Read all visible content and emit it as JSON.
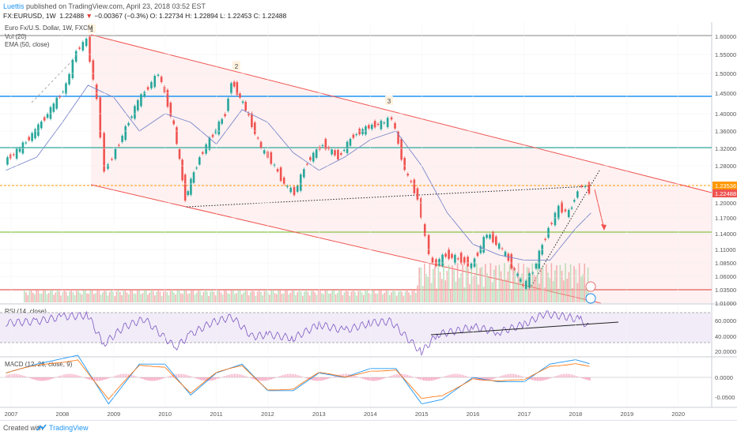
{
  "header": {
    "author": "Luettis",
    "published": "published on TradingView.com, April 23, 2018 03:52 EST",
    "symbol": "FX:EURUSD, 1W",
    "last": "1.22488",
    "change_arrow": "▼",
    "change": "−0.00367 (−0.3%)",
    "open": "O: 1.22734",
    "high": "H: 1.22894",
    "low": "L: 1.22453",
    "close": "C: 1.22488"
  },
  "legend": {
    "title": "Euro Fx/U.S. Dollar, 1W, FXCM",
    "vol": "Vol (20)",
    "ema": "EMA (50, close)",
    "rsi": "RSI (14, close)",
    "macd": "MACD (12, 26, close, 9)"
  },
  "footer": {
    "created": "Created with",
    "brand": "TradingView"
  },
  "colors": {
    "up": "#26a69a",
    "down": "#ef5350",
    "channel": "#ef5350",
    "rsi": "#7e57c2",
    "macd": "#2196f3",
    "signal": "#ff6d00"
  },
  "chart_data": [
    {
      "type": "line",
      "title": "Euro Fx/U.S. Dollar, 1W, FXCM",
      "x_ticks": [
        "2007",
        "2008",
        "2009",
        "2010",
        "2011",
        "2012",
        "2013",
        "2014",
        "2015",
        "2016",
        "2017",
        "2018",
        "2019",
        "2020"
      ],
      "y_ticks": [
        "1.60000",
        "1.55000",
        "1.50000",
        "1.45000",
        "1.40000",
        "1.36000",
        "1.32000",
        "1.28000",
        "1.24000",
        "1.20000",
        "1.17000",
        "1.14000",
        "1.11000",
        "1.08500",
        "1.06000",
        "1.03500",
        "1.01000"
      ],
      "y_range": [
        1.01,
        1.61
      ],
      "price_labels": [
        "1.23536",
        "1.22488"
      ],
      "wave_labels": [
        "1",
        "2",
        "3"
      ],
      "series": [
        {
          "name": "Price",
          "x": [
            2006.9,
            2007.2,
            2007.5,
            2007.8,
            2008.1,
            2008.3,
            2008.5,
            2008.7,
            2008.85,
            2009.0,
            2009.2,
            2009.5,
            2009.9,
            2010.2,
            2010.42,
            2010.7,
            2010.9,
            2011.2,
            2011.32,
            2011.6,
            2011.9,
            2012.1,
            2012.35,
            2012.55,
            2012.8,
            2013.1,
            2013.4,
            2013.7,
            2014.0,
            2014.3,
            2014.45,
            2014.7,
            2014.95,
            2015.1,
            2015.25,
            2015.5,
            2015.8,
            2016.0,
            2016.3,
            2016.6,
            2016.9,
            2017.0,
            2017.2,
            2017.5,
            2017.7,
            2017.9,
            2018.0,
            2018.15,
            2018.3
          ],
          "y": [
            1.29,
            1.32,
            1.36,
            1.41,
            1.47,
            1.56,
            1.59,
            1.43,
            1.27,
            1.3,
            1.35,
            1.43,
            1.5,
            1.37,
            1.21,
            1.3,
            1.34,
            1.4,
            1.48,
            1.41,
            1.32,
            1.29,
            1.24,
            1.22,
            1.29,
            1.33,
            1.3,
            1.35,
            1.37,
            1.38,
            1.39,
            1.27,
            1.21,
            1.13,
            1.08,
            1.1,
            1.09,
            1.08,
            1.14,
            1.11,
            1.06,
            1.04,
            1.07,
            1.15,
            1.19,
            1.18,
            1.21,
            1.24,
            1.225
          ]
        },
        {
          "name": "EMA (50, close)",
          "x": [
            2006.9,
            2007.5,
            2008.0,
            2008.5,
            2009.0,
            2009.5,
            2010.0,
            2010.5,
            2011.0,
            2011.5,
            2012.0,
            2012.5,
            2013.0,
            2013.5,
            2014.0,
            2014.5,
            2015.0,
            2015.5,
            2016.0,
            2016.5,
            2017.0,
            2017.5,
            2018.0,
            2018.3
          ],
          "y": [
            1.27,
            1.3,
            1.38,
            1.47,
            1.44,
            1.36,
            1.4,
            1.38,
            1.33,
            1.41,
            1.38,
            1.31,
            1.27,
            1.3,
            1.34,
            1.36,
            1.28,
            1.18,
            1.12,
            1.1,
            1.09,
            1.09,
            1.15,
            1.18
          ]
        }
      ]
    },
    {
      "type": "bar",
      "title": "Vol (20)",
      "x": [
        2015.0,
        2015.5,
        2016.0,
        2016.5,
        2017.0,
        2017.5,
        2018.0
      ],
      "values_relative": [
        0.8,
        0.7,
        0.6,
        0.55,
        0.6,
        0.65,
        0.7
      ]
    },
    {
      "type": "line",
      "title": "RSI (14, close)",
      "y_ticks": [
        "60.0000",
        "40.0000",
        "20.0000"
      ],
      "y_range": [
        15,
        90
      ],
      "series": [
        {
          "name": "RSI",
          "x": [
            2006.9,
            2007.5,
            2008.0,
            2008.5,
            2008.8,
            2009.2,
            2009.6,
            2010.2,
            2010.5,
            2010.9,
            2011.3,
            2011.7,
            2012.0,
            2012.5,
            2013.0,
            2013.5,
            2014.0,
            2014.4,
            2014.8,
            2015.0,
            2015.3,
            2015.7,
            2016.0,
            2016.5,
            2017.0,
            2017.4,
            2017.8,
            2018.1,
            2018.3
          ],
          "y": [
            60,
            62,
            68,
            70,
            32,
            55,
            65,
            28,
            45,
            60,
            68,
            42,
            45,
            40,
            58,
            50,
            60,
            62,
            35,
            22,
            45,
            50,
            55,
            48,
            58,
            72,
            68,
            64,
            52
          ]
        }
      ]
    },
    {
      "type": "line",
      "title": "MACD (12, 26, close, 9)",
      "y_ticks": [
        "0.0000",
        "-0.0500"
      ],
      "series": [
        {
          "name": "MACD",
          "x": [
            2006.9,
            2007.5,
            2008.3,
            2008.9,
            2009.5,
            2010.0,
            2010.5,
            2011.0,
            2011.5,
            2012.0,
            2012.5,
            2013.0,
            2013.5,
            2014.0,
            2014.5,
            2015.0,
            2015.4,
            2016.0,
            2016.5,
            2017.0,
            2017.5,
            2018.0,
            2018.3
          ],
          "y": [
            0.01,
            0.03,
            0.05,
            -0.06,
            0.03,
            0.03,
            -0.04,
            0.01,
            0.03,
            -0.03,
            -0.03,
            0.01,
            0.0,
            0.02,
            0.02,
            -0.06,
            -0.05,
            0.0,
            -0.01,
            -0.01,
            0.03,
            0.04,
            0.03
          ]
        }
      ]
    }
  ]
}
